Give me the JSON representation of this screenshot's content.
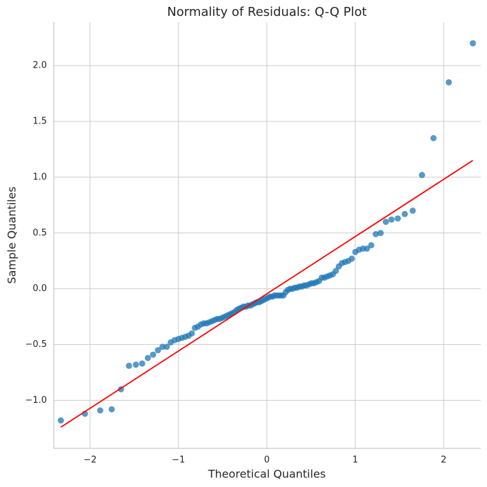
{
  "chart_data": {
    "type": "scatter",
    "title": "Normality of Residuals: Q-Q Plot",
    "xlabel": "Theoretical Quantiles",
    "ylabel": "Sample Quantiles",
    "xlim": [
      -2.41,
      2.42
    ],
    "ylim": [
      -1.43,
      2.39
    ],
    "xticks": [
      {
        "value": -2,
        "label": "−2"
      },
      {
        "value": -1,
        "label": "−1"
      },
      0,
      1,
      2
    ],
    "yticks": [
      {
        "value": -1,
        "label": "−1.0"
      },
      {
        "value": -0.5,
        "label": "−0.5"
      },
      {
        "value": 0,
        "label": "0.0"
      },
      0.5,
      {
        "value": 1,
        "label": "1.0"
      },
      1.5,
      {
        "value": 2,
        "label": "2.0"
      }
    ],
    "grid": true,
    "series": [
      {
        "color": "#1f77b4",
        "x": [
          -2.33,
          -2.058,
          -1.885,
          -1.755,
          -1.65,
          -1.56,
          -1.481,
          -1.41,
          -1.346,
          -1.287,
          -1.232,
          -1.181,
          -1.132,
          -1.087,
          -1.043,
          -1.001,
          -0.961,
          -0.922,
          -0.885,
          -0.849,
          -0.814,
          -0.78,
          -0.746,
          -0.714,
          -0.682,
          -0.651,
          -0.621,
          -0.591,
          -0.562,
          -0.533,
          -0.505,
          -0.477,
          -0.449,
          -0.422,
          -0.395,
          -0.368,
          -0.342,
          -0.316,
          -0.29,
          -0.264,
          -0.238,
          -0.213,
          -0.187,
          -0.162,
          -0.137,
          -0.112,
          -0.087,
          -0.062,
          -0.037,
          -0.012,
          0.012,
          0.037,
          0.062,
          0.087,
          0.112,
          0.137,
          0.162,
          0.187,
          0.213,
          0.238,
          0.264,
          0.29,
          0.316,
          0.342,
          0.368,
          0.395,
          0.422,
          0.449,
          0.477,
          0.505,
          0.533,
          0.562,
          0.591,
          0.621,
          0.651,
          0.682,
          0.714,
          0.746,
          0.78,
          0.814,
          0.849,
          0.885,
          0.922,
          0.961,
          1.001,
          1.043,
          1.087,
          1.132,
          1.181,
          1.232,
          1.287,
          1.346,
          1.41,
          1.481,
          1.56,
          1.65,
          1.755,
          1.885,
          2.058,
          2.33
        ],
        "values": [
          -1.18,
          -1.12,
          -1.09,
          -1.08,
          -0.9,
          -0.69,
          -0.68,
          -0.67,
          -0.62,
          -0.59,
          -0.55,
          -0.52,
          -0.52,
          -0.48,
          -0.46,
          -0.45,
          -0.44,
          -0.43,
          -0.42,
          -0.4,
          -0.35,
          -0.34,
          -0.32,
          -0.31,
          -0.31,
          -0.3,
          -0.29,
          -0.28,
          -0.27,
          -0.27,
          -0.26,
          -0.25,
          -0.24,
          -0.23,
          -0.22,
          -0.21,
          -0.19,
          -0.18,
          -0.17,
          -0.16,
          -0.16,
          -0.15,
          -0.15,
          -0.14,
          -0.13,
          -0.12,
          -0.12,
          -0.11,
          -0.1,
          -0.09,
          -0.08,
          -0.07,
          -0.07,
          -0.06,
          -0.06,
          -0.06,
          -0.06,
          -0.06,
          -0.03,
          -0.01,
          0.0,
          0.0,
          0.01,
          0.01,
          0.02,
          0.02,
          0.03,
          0.03,
          0.04,
          0.05,
          0.05,
          0.06,
          0.07,
          0.1,
          0.1,
          0.11,
          0.12,
          0.13,
          0.16,
          0.2,
          0.23,
          0.24,
          0.25,
          0.27,
          0.33,
          0.35,
          0.36,
          0.36,
          0.39,
          0.49,
          0.5,
          0.6,
          0.62,
          0.63,
          0.67,
          0.7,
          1.02,
          1.35,
          1.85,
          2.2
        ]
      }
    ],
    "reference_line": {
      "color": "#ff0000",
      "x": [
        -2.33,
        2.33
      ],
      "values": [
        -1.24,
        1.15
      ]
    }
  }
}
